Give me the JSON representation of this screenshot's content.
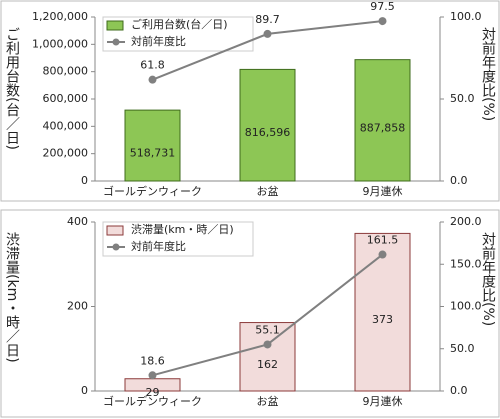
{
  "chart_data": [
    {
      "type": "combo",
      "categories": [
        "ゴールデンウィーク",
        "お盆",
        "9月連休"
      ],
      "y_label": "ご利用台数(台／日)",
      "y2_label": "対前年度比(%)",
      "ylim": [
        0,
        1200000
      ],
      "yticks": [
        0,
        {
          "value": 200000,
          "label": "200,000"
        },
        {
          "value": 400000,
          "label": "400,000"
        },
        {
          "value": 600000,
          "label": "600,000"
        },
        {
          "value": 800000,
          "label": "800,000"
        },
        {
          "value": 1000000,
          "label": "1,000,000"
        },
        {
          "value": 1200000,
          "label": "1,200,000"
        }
      ],
      "y2lim": [
        0,
        100
      ],
      "y2ticks": [
        {
          "value": 0,
          "label": "0.0"
        },
        {
          "value": 50,
          "label": "50.0"
        },
        {
          "value": 100,
          "label": "100.0"
        }
      ],
      "series": [
        {
          "name": "ご利用台数(台／日)",
          "type": "bar",
          "color": "#8dc655",
          "edge": "#3f6b1c",
          "values": [
            518731,
            816596,
            887858
          ],
          "value_labels": [
            "518,731",
            "816,596",
            "887,858"
          ]
        },
        {
          "name": "対前年度比",
          "type": "line",
          "axis": "y2",
          "color": "#808080",
          "values": [
            61.8,
            89.7,
            97.5
          ]
        }
      ]
    },
    {
      "type": "combo",
      "categories": [
        "ゴールデンウィーク",
        "お盆",
        "9月連休"
      ],
      "y_label": "渋滞量(km・時／日)",
      "y2_label": "対前年度比(%)",
      "ylim": [
        0,
        400
      ],
      "yticks": [
        0,
        200,
        400
      ],
      "y2lim": [
        0,
        200
      ],
      "y2ticks": [
        {
          "value": 0,
          "label": "0.0"
        },
        {
          "value": 50,
          "label": "50.0"
        },
        {
          "value": 100,
          "label": "100.0"
        },
        {
          "value": 150,
          "label": "150.0"
        },
        {
          "value": 200,
          "label": "200.0"
        }
      ],
      "series": [
        {
          "name": "渋滞量(km・時／日)",
          "type": "bar",
          "color": "#f2dcdb",
          "edge": "#8b3a3a",
          "values": [
            29,
            162,
            373
          ]
        },
        {
          "name": "対前年度比",
          "type": "line",
          "axis": "y2",
          "color": "#808080",
          "values": [
            18.6,
            55.1,
            161.5
          ]
        }
      ]
    }
  ]
}
